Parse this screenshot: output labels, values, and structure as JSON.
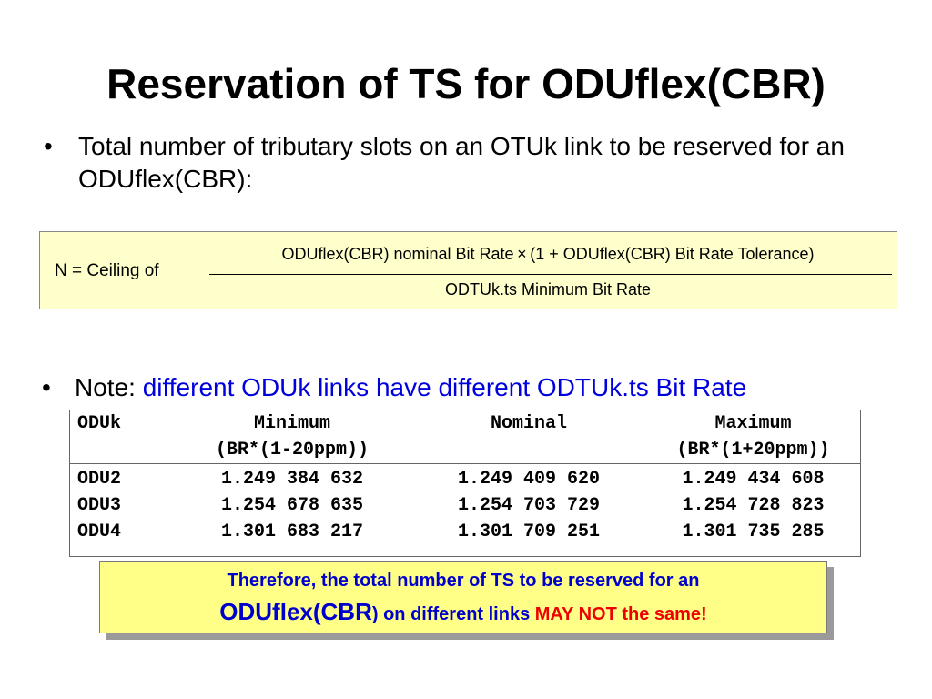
{
  "title": "Reservation of TS for ODUflex(CBR)",
  "bullets": {
    "bullet_symbol": "•",
    "first": "Total number of tributary slots on an OTUk link to be reserved for an ODUflex(CBR):",
    "note_label": "Note: ",
    "note_text": "different ODUk links have different ODTUk.ts Bit Rate"
  },
  "formula": {
    "lhs": "N = Ceiling of",
    "numerator": "ODUflex(CBR) nominal Bit Rate × (1 + ODUflex(CBR) Bit Rate Tolerance)",
    "denominator": "ODTUk.ts Minimum Bit Rate"
  },
  "table": {
    "headers": {
      "odu": "ODUk",
      "minimum": "Minimum",
      "minimum_sub": "(BR*(1-20ppm))",
      "nominal": "Nominal",
      "maximum": "Maximum",
      "maximum_sub": "(BR*(1+20ppm))"
    },
    "rows": [
      {
        "odu": "ODU2",
        "minimum": "1.249 384 632",
        "nominal": "1.249 409 620",
        "maximum": "1.249 434 608"
      },
      {
        "odu": "ODU3",
        "minimum": "1.254 678 635",
        "nominal": "1.254 703 729",
        "maximum": "1.254 728 823"
      },
      {
        "odu": "ODU4",
        "minimum": "1.301 683 217",
        "nominal": "1.301 709 251",
        "maximum": "1.301 735 285"
      }
    ]
  },
  "callout": {
    "line1": "Therefore, the total number of TS to be reserved for an",
    "line2_big": "ODUflex(CBR",
    "line2_small": ") on different links ",
    "line2_warning": "MAY NOT the same!"
  },
  "colors": {
    "note_blue": "#0000dd",
    "formula_background": "#ffffcc",
    "callout_background": "#ffff88",
    "callout_text": "#0000cc",
    "warning_red": "#ee0000"
  }
}
